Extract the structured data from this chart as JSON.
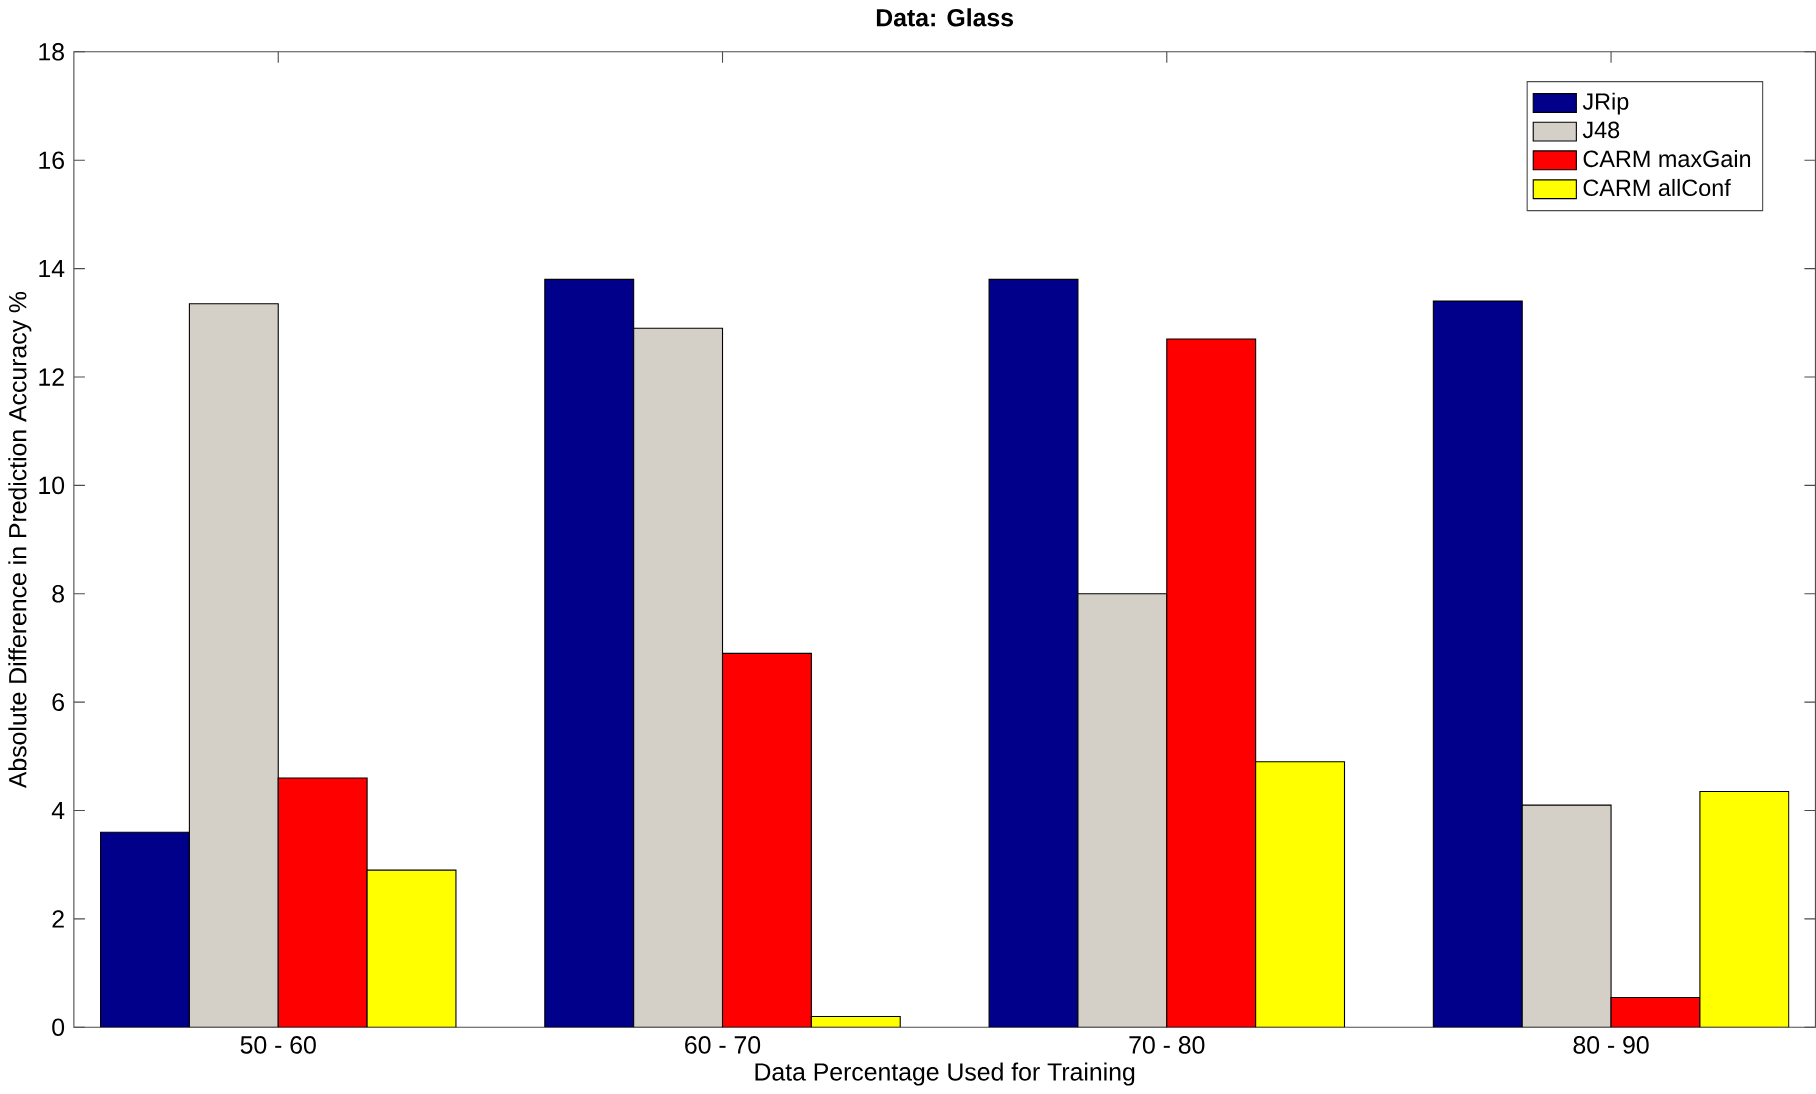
{
  "chart_data": {
    "type": "bar",
    "title": "Data: Glass",
    "xlabel": "Data Percentage Used for Training",
    "ylabel": "Absolute Difference in Prediction Accuracy %",
    "categories": [
      "50 - 60",
      "60 - 70",
      "70 - 80",
      "80 - 90"
    ],
    "series": [
      {
        "name": "JRip",
        "color": "#00008b",
        "values": [
          3.6,
          13.8,
          13.8,
          13.4
        ]
      },
      {
        "name": "J48",
        "color": "#d4d0c8",
        "values": [
          13.35,
          12.9,
          8.0,
          4.1
        ]
      },
      {
        "name": "CARM maxGain",
        "color": "#ff0000",
        "values": [
          4.6,
          6.9,
          12.7,
          0.55
        ]
      },
      {
        "name": "CARM allConf",
        "color": "#ffff00",
        "values": [
          2.9,
          0.2,
          4.9,
          4.35
        ]
      }
    ],
    "ylim": [
      0,
      18
    ],
    "yticks": [
      0,
      2,
      4,
      6,
      8,
      10,
      12,
      14,
      16,
      18
    ],
    "grid": false,
    "legend": "top right"
  }
}
